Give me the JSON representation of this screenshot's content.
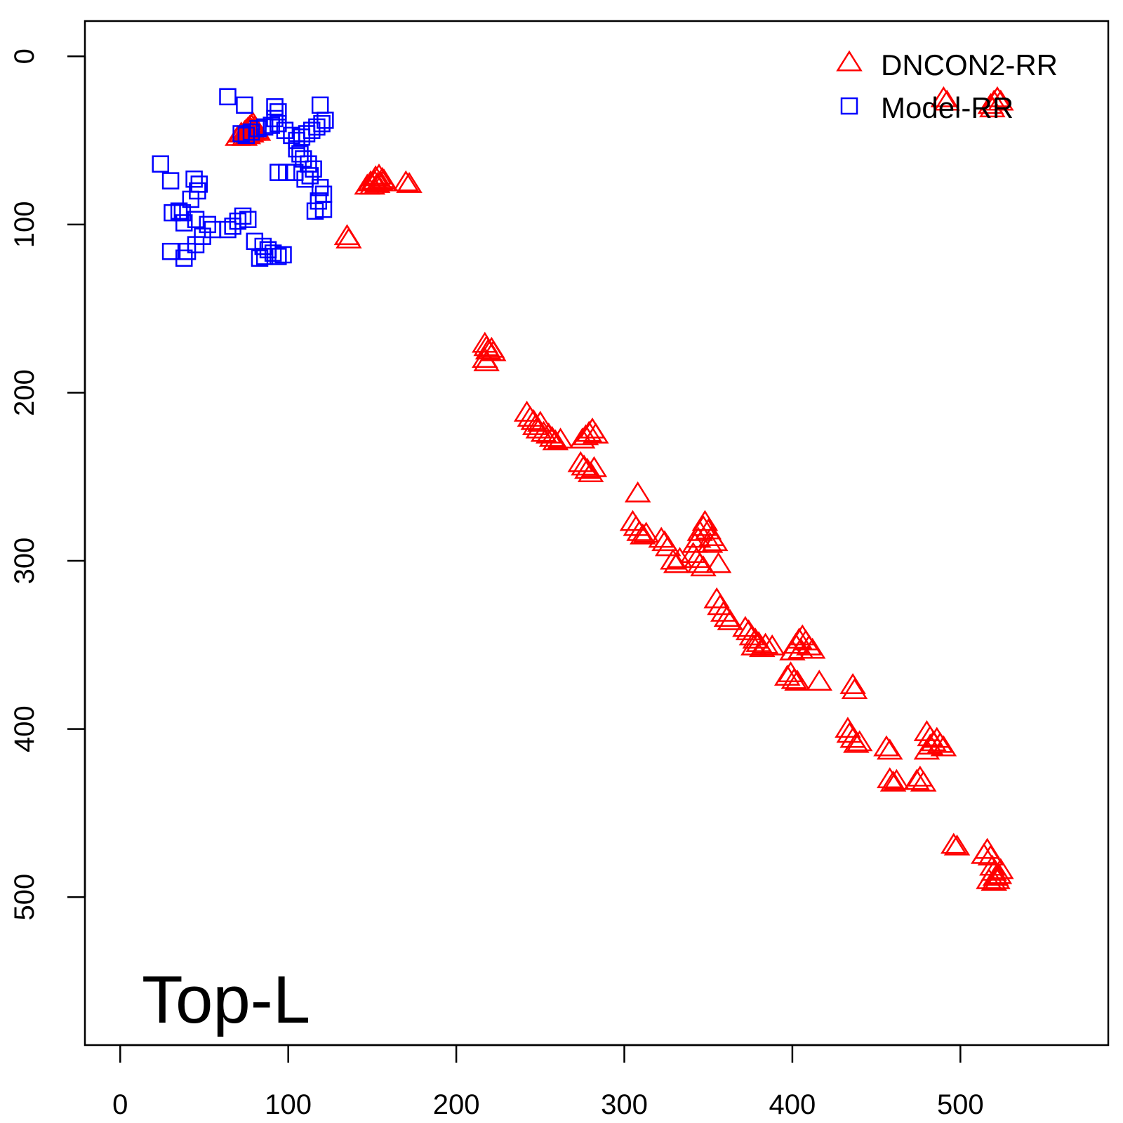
{
  "chart_data": {
    "type": "scatter",
    "title": "",
    "xlabel": "",
    "ylabel": "",
    "xlim": [
      -21,
      588
    ],
    "ylim": [
      -21,
      588
    ],
    "y_reversed": true,
    "grid": false,
    "legend_position": "top-right",
    "x_ticks": [
      0,
      100,
      200,
      300,
      400,
      500
    ],
    "y_ticks": [
      0,
      100,
      200,
      300,
      400,
      500
    ],
    "annotation": "Top-L",
    "series": [
      {
        "name": "DNCON2-RR",
        "marker": "triangle-open",
        "color": "#ff0000",
        "points": [
          [
            70,
            48
          ],
          [
            72,
            46
          ],
          [
            74,
            45
          ],
          [
            75,
            44
          ],
          [
            76,
            43
          ],
          [
            77,
            42
          ],
          [
            78,
            41
          ],
          [
            79,
            40
          ],
          [
            80,
            42
          ],
          [
            81,
            44
          ],
          [
            78,
            46
          ],
          [
            76,
            47
          ],
          [
            74,
            48
          ],
          [
            79,
            45
          ],
          [
            82,
            45
          ],
          [
            77,
            44
          ],
          [
            147,
            77
          ],
          [
            149,
            75
          ],
          [
            151,
            74
          ],
          [
            152,
            72
          ],
          [
            154,
            71
          ],
          [
            156,
            73
          ],
          [
            153,
            76
          ],
          [
            150,
            77
          ],
          [
            155,
            75
          ],
          [
            157,
            74
          ],
          [
            170,
            75
          ],
          [
            172,
            76
          ],
          [
            135,
            107
          ],
          [
            136,
            109
          ],
          [
            217,
            171
          ],
          [
            218,
            173
          ],
          [
            219,
            175
          ],
          [
            221,
            174
          ],
          [
            222,
            176
          ],
          [
            217,
            180
          ],
          [
            218,
            182
          ],
          [
            242,
            212
          ],
          [
            244,
            215
          ],
          [
            246,
            217
          ],
          [
            247,
            220
          ],
          [
            249,
            222
          ],
          [
            250,
            218
          ],
          [
            252,
            224
          ],
          [
            255,
            225
          ],
          [
            257,
            227
          ],
          [
            259,
            229
          ],
          [
            262,
            228
          ],
          [
            275,
            228
          ],
          [
            277,
            226
          ],
          [
            279,
            224
          ],
          [
            281,
            222
          ],
          [
            283,
            225
          ],
          [
            274,
            242
          ],
          [
            276,
            244
          ],
          [
            278,
            246
          ],
          [
            280,
            248
          ],
          [
            282,
            245
          ],
          [
            308,
            260
          ],
          [
            305,
            277
          ],
          [
            307,
            280
          ],
          [
            309,
            283
          ],
          [
            311,
            285
          ],
          [
            313,
            284
          ],
          [
            322,
            287
          ],
          [
            324,
            289
          ],
          [
            326,
            292
          ],
          [
            329,
            300
          ],
          [
            331,
            302
          ],
          [
            333,
            299
          ],
          [
            341,
            296
          ],
          [
            343,
            299
          ],
          [
            345,
            302
          ],
          [
            347,
            304
          ],
          [
            342,
            290
          ],
          [
            344,
            287
          ],
          [
            345,
            283
          ],
          [
            347,
            280
          ],
          [
            348,
            277
          ],
          [
            350,
            282
          ],
          [
            352,
            286
          ],
          [
            354,
            289
          ],
          [
            351,
            290
          ],
          [
            356,
            302
          ],
          [
            355,
            323
          ],
          [
            357,
            327
          ],
          [
            359,
            331
          ],
          [
            361,
            334
          ],
          [
            363,
            336
          ],
          [
            372,
            340
          ],
          [
            374,
            342
          ],
          [
            376,
            345
          ],
          [
            378,
            347
          ],
          [
            380,
            349
          ],
          [
            382,
            352
          ],
          [
            384,
            350
          ],
          [
            388,
            351
          ],
          [
            377,
            351
          ],
          [
            400,
            354
          ],
          [
            402,
            350
          ],
          [
            404,
            347
          ],
          [
            406,
            345
          ],
          [
            408,
            348
          ],
          [
            410,
            351
          ],
          [
            412,
            353
          ],
          [
            405,
            353
          ],
          [
            397,
            369
          ],
          [
            399,
            367
          ],
          [
            401,
            371
          ],
          [
            403,
            372
          ],
          [
            416,
            372
          ],
          [
            436,
            374
          ],
          [
            437,
            377
          ],
          [
            433,
            400
          ],
          [
            434,
            403
          ],
          [
            436,
            406
          ],
          [
            438,
            409
          ],
          [
            440,
            408
          ],
          [
            456,
            411
          ],
          [
            458,
            413
          ],
          [
            458,
            430
          ],
          [
            460,
            432
          ],
          [
            462,
            431
          ],
          [
            474,
            431
          ],
          [
            476,
            429
          ],
          [
            478,
            432
          ],
          [
            480,
            402
          ],
          [
            482,
            405
          ],
          [
            484,
            408
          ],
          [
            486,
            406
          ],
          [
            488,
            409
          ],
          [
            480,
            413
          ],
          [
            490,
            411
          ],
          [
            482,
            410
          ],
          [
            496,
            469
          ],
          [
            498,
            470
          ],
          [
            514,
            475
          ],
          [
            516,
            472
          ],
          [
            518,
            476
          ],
          [
            519,
            482
          ],
          [
            520,
            485
          ],
          [
            521,
            488
          ],
          [
            522,
            490
          ],
          [
            523,
            487
          ],
          [
            524,
            484
          ],
          [
            520,
            491
          ],
          [
            517,
            490
          ],
          [
            490,
            25
          ],
          [
            492,
            27
          ],
          [
            518,
            29
          ],
          [
            520,
            27
          ],
          [
            522,
            25
          ],
          [
            524,
            27
          ],
          [
            519,
            31
          ]
        ]
      },
      {
        "name": "Model-RR",
        "marker": "square-open",
        "color": "#0000ff",
        "points": [
          [
            64,
            24
          ],
          [
            74,
            29
          ],
          [
            119,
            29
          ],
          [
            92,
            30
          ],
          [
            94,
            33
          ],
          [
            92,
            37
          ],
          [
            72,
            46
          ],
          [
            75,
            47
          ],
          [
            78,
            45
          ],
          [
            82,
            43
          ],
          [
            86,
            42
          ],
          [
            90,
            41
          ],
          [
            94,
            40
          ],
          [
            98,
            44
          ],
          [
            102,
            47
          ],
          [
            105,
            50
          ],
          [
            108,
            48
          ],
          [
            111,
            46
          ],
          [
            114,
            44
          ],
          [
            117,
            42
          ],
          [
            120,
            40
          ],
          [
            122,
            38
          ],
          [
            105,
            55
          ],
          [
            107,
            58
          ],
          [
            109,
            61
          ],
          [
            112,
            64
          ],
          [
            115,
            67
          ],
          [
            94,
            69
          ],
          [
            99,
            69
          ],
          [
            104,
            69
          ],
          [
            113,
            71
          ],
          [
            110,
            73
          ],
          [
            119,
            78
          ],
          [
            121,
            82
          ],
          [
            118,
            86
          ],
          [
            121,
            91
          ],
          [
            116,
            92
          ],
          [
            24,
            64
          ],
          [
            30,
            74
          ],
          [
            44,
            73
          ],
          [
            47,
            76
          ],
          [
            46,
            80
          ],
          [
            42,
            85
          ],
          [
            35,
            92
          ],
          [
            37,
            93
          ],
          [
            31,
            93
          ],
          [
            38,
            99
          ],
          [
            45,
            97
          ],
          [
            52,
            100
          ],
          [
            55,
            103
          ],
          [
            49,
            107
          ],
          [
            45,
            112
          ],
          [
            40,
            116
          ],
          [
            38,
            120
          ],
          [
            30,
            116
          ],
          [
            64,
            103
          ],
          [
            67,
            101
          ],
          [
            70,
            98
          ],
          [
            73,
            95
          ],
          [
            76,
            97
          ],
          [
            80,
            110
          ],
          [
            85,
            113
          ],
          [
            88,
            115
          ],
          [
            91,
            117
          ],
          [
            94,
            119
          ],
          [
            97,
            118
          ],
          [
            86,
            119
          ],
          [
            83,
            120
          ]
        ]
      }
    ]
  }
}
